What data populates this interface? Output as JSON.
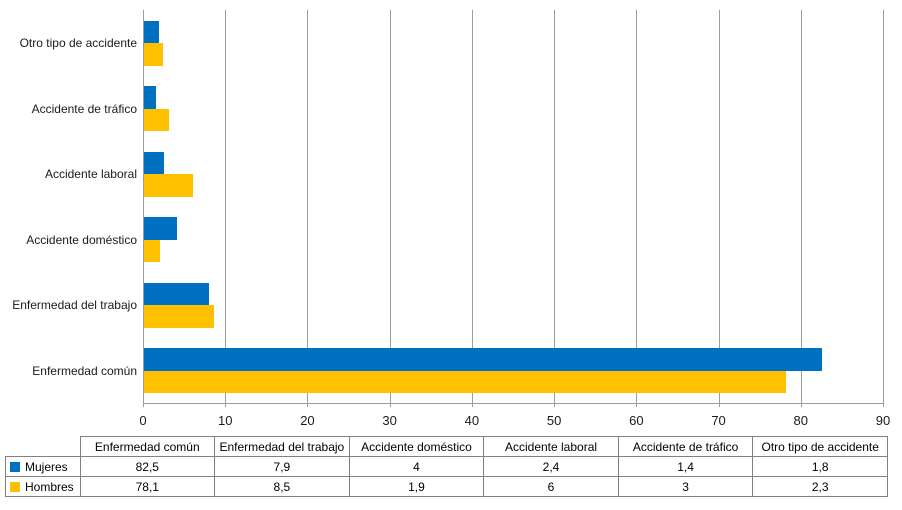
{
  "chart_data": {
    "type": "bar",
    "orientation": "horizontal",
    "title": "",
    "xlabel": "",
    "ylabel": "",
    "categories_top_to_bottom": [
      "Otro tipo de accidente",
      "Accidente de tráfico",
      "Accidente laboral",
      "Accidente doméstico",
      "Enfermedad del trabajo",
      "Enfermedad común"
    ],
    "series": [
      {
        "name": "Mujeres",
        "color": "#0070C0",
        "values": [
          1.8,
          1.4,
          2.4,
          4,
          7.9,
          82.5
        ]
      },
      {
        "name": "Hombres",
        "color": "#FFC000",
        "values": [
          2.3,
          3,
          6,
          1.9,
          8.5,
          78.1
        ]
      }
    ],
    "xlim": [
      0,
      90
    ],
    "x_ticks": [
      0,
      10,
      20,
      30,
      40,
      50,
      60,
      70,
      80,
      90
    ],
    "x_tick_labels": [
      "0",
      "10",
      "20",
      "30",
      "40",
      "50",
      "60",
      "70",
      "80",
      "90"
    ],
    "grid": "vertical",
    "legend_position": "table-row-headers"
  },
  "table": {
    "corner_label": "",
    "column_headers": [
      "Enfermedad común",
      "Enfermedad del trabajo",
      "Accidente doméstico",
      "Accidente laboral",
      "Accidente de tráfico",
      "Otro tipo de accidente"
    ],
    "rows": [
      {
        "label": "Mujeres",
        "marker_color": "#0070C0",
        "values": [
          "82,5",
          "7,9",
          "4",
          "2,4",
          "1,4",
          "1,8"
        ]
      },
      {
        "label": "Hombres",
        "marker_color": "#FFC000",
        "values": [
          "78,1",
          "8,5",
          "1,9",
          "6",
          "3",
          "2,3"
        ]
      }
    ]
  },
  "colors": {
    "gridline": "#9C9C9C",
    "table_border": "#808080",
    "text": "#1A1A1A"
  }
}
